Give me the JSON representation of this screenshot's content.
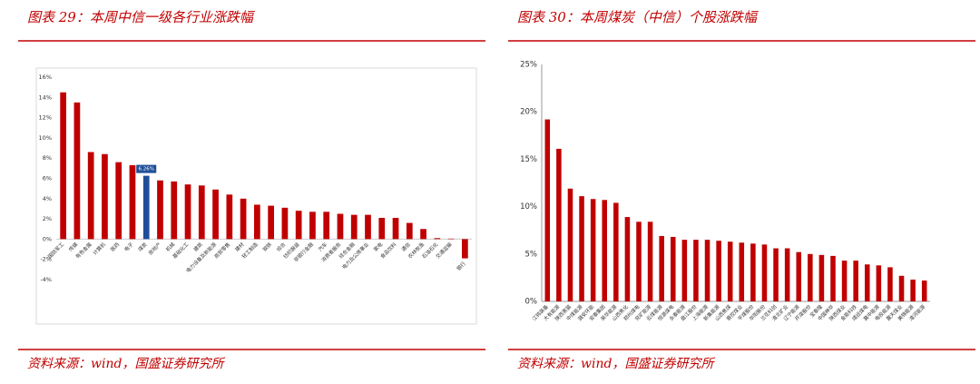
{
  "chart_data": [
    {
      "type": "bar",
      "title": "图表 29：本周中信一级各行业涨跌幅",
      "source": "资料来源：wind，国盛证券研究所",
      "categories": [
        "国防军工",
        "传媒",
        "有色金属",
        "计算机",
        "医药",
        "电子",
        "煤炭",
        "房地产",
        "机械",
        "基础化工",
        "建筑",
        "电力设备及新能源",
        "商贸零售",
        "建材",
        "轻工制造",
        "钢铁",
        "综合",
        "纺织服装",
        "非银行金融",
        "汽车",
        "消费者服务",
        "综合金融",
        "电力及公用事业",
        "家电",
        "食品饮料",
        "通信",
        "农林牧渔",
        "石油石化",
        "交通运输",
        "银行"
      ],
      "values": [
        14.5,
        13.5,
        8.6,
        8.4,
        7.6,
        7.3,
        6.26,
        5.8,
        5.7,
        5.4,
        5.3,
        4.9,
        4.4,
        4.0,
        3.4,
        3.3,
        3.1,
        2.8,
        2.7,
        2.7,
        2.5,
        2.4,
        2.4,
        2.1,
        2.1,
        1.6,
        1.0,
        0.1,
        0.05,
        -1.9
      ],
      "value_labels": [
        null,
        null,
        null,
        null,
        null,
        null,
        "6.26%",
        null,
        null,
        null,
        null,
        null,
        null,
        null,
        null,
        null,
        null,
        null,
        null,
        null,
        null,
        null,
        null,
        null,
        null,
        null,
        null,
        null,
        null,
        null
      ],
      "color": "#c00000",
      "highlight_color": "#1f4e99",
      "ylim": [
        -4,
        16
      ],
      "yticks": [
        {
          "value": -4,
          "label": "-4%"
        },
        {
          "value": -2,
          "label": "-2%"
        },
        {
          "value": 0,
          "label": "0%"
        },
        {
          "value": 2,
          "label": "2%"
        },
        {
          "value": 4,
          "label": "4%"
        },
        {
          "value": 6,
          "label": "6%"
        },
        {
          "value": 8,
          "label": "8%"
        },
        {
          "value": 10,
          "label": "10%"
        },
        {
          "value": 12,
          "label": "12%"
        },
        {
          "value": 14,
          "label": "14%"
        },
        {
          "value": 16,
          "label": "16%"
        }
      ],
      "grid": false
    },
    {
      "type": "bar",
      "title": "图表 30：本周煤炭（中信）个股涨跌幅",
      "source": "资料来源：wind，国盛证券研究所",
      "categories": [
        "江钨装备",
        "大有能源",
        "陕西黑猫",
        "中煤能源",
        "潞安环能",
        "安泰集团",
        "昊华能源",
        "山西焦化",
        "郑州煤电",
        "兖矿能源",
        "云煤能源",
        "恒源煤电",
        "永泰能源",
        "盘江股份",
        "上海能源",
        "新集能源",
        "山西焦煤",
        "晋控煤业",
        "平煤股份",
        "华阳股份",
        "兰花科创",
        "淮北矿业",
        "辽宁能源",
        "开滦股份",
        "宝泰隆",
        "中国神华",
        "陕西煤业",
        "金能科技",
        "靖远煤电",
        "冀中能源",
        "电投能源",
        "露天煤业",
        "美锦能源",
        "淮河能源"
      ],
      "values": [
        19.2,
        16.1,
        11.9,
        11.1,
        10.8,
        10.7,
        10.4,
        8.9,
        8.4,
        8.4,
        6.9,
        6.8,
        6.5,
        6.5,
        6.5,
        6.4,
        6.3,
        6.2,
        6.1,
        6.0,
        5.6,
        5.6,
        5.2,
        5.0,
        4.9,
        4.8,
        4.3,
        4.3,
        3.9,
        3.8,
        3.6,
        2.7,
        2.3,
        2.2
      ],
      "color": "#c00000",
      "ylim": [
        0,
        25
      ],
      "yticks": [
        {
          "value": 0,
          "label": "0%"
        },
        {
          "value": 5,
          "label": "5%"
        },
        {
          "value": 10,
          "label": "10%"
        },
        {
          "value": 15,
          "label": "15%"
        },
        {
          "value": 20,
          "label": "20%"
        },
        {
          "value": 25,
          "label": "25%"
        }
      ],
      "grid": false
    }
  ]
}
